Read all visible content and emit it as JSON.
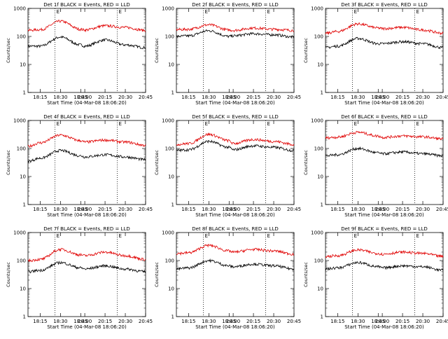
{
  "figure": {
    "xlabel": "Start Time (04-Mar-08 18:06:20)",
    "ylabel": "Counts/sec",
    "x_tick_labels": [
      "18:15",
      "18:30",
      "18:45",
      "20:00",
      "20:15",
      "20:30",
      "20:45"
    ],
    "y_tick_labels": [
      "1",
      "10",
      "100",
      "1000"
    ],
    "marker_labels": [
      "E",
      "E"
    ],
    "marker_times": [
      "18:26",
      "20:24"
    ],
    "colors": {
      "events": "#000000",
      "lld": "#e00000",
      "markers": "#000000"
    }
  },
  "chart_data": [
    {
      "type": "line",
      "title": "Det 1f BLACK = Events, RED = LLD",
      "yscale": "log",
      "ylim": [
        1,
        1000
      ],
      "x": [
        "18:06",
        "18:15",
        "18:30",
        "18:45",
        "20:00",
        "20:15",
        "20:30",
        "20:45"
      ],
      "series": [
        {
          "name": "Events",
          "values": [
            45,
            45,
            95,
            50,
            45,
            75,
            50,
            40
          ]
        },
        {
          "name": "LLD",
          "values": [
            165,
            175,
            350,
            180,
            170,
            240,
            210,
            165
          ]
        }
      ]
    },
    {
      "type": "line",
      "title": "Det 2f BLACK = Events, RED = LLD",
      "yscale": "log",
      "ylim": [
        1,
        1000
      ],
      "x": [
        "18:06",
        "18:15",
        "18:30",
        "18:45",
        "20:00",
        "20:15",
        "20:30",
        "20:45"
      ],
      "series": [
        {
          "name": "Events",
          "values": [
            100,
            105,
            160,
            100,
            105,
            125,
            115,
            95
          ]
        },
        {
          "name": "LLD",
          "values": [
            175,
            180,
            260,
            170,
            165,
            200,
            180,
            165
          ]
        }
      ]
    },
    {
      "type": "line",
      "title": "Det 3f BLACK = Events, RED = LLD",
      "yscale": "log",
      "ylim": [
        1,
        1000
      ],
      "x": [
        "18:06",
        "18:15",
        "18:30",
        "18:45",
        "20:00",
        "20:15",
        "20:30",
        "20:45"
      ],
      "series": [
        {
          "name": "Events",
          "values": [
            40,
            45,
            85,
            55,
            55,
            65,
            55,
            40
          ]
        },
        {
          "name": "LLD",
          "values": [
            130,
            150,
            280,
            200,
            190,
            210,
            170,
            130
          ]
        }
      ]
    },
    {
      "type": "line",
      "title": "Det 4f BLACK = Events, RED = LLD",
      "yscale": "log",
      "ylim": [
        1,
        1000
      ],
      "x": [
        "18:06",
        "18:15",
        "18:30",
        "18:45",
        "20:00",
        "20:15",
        "20:30",
        "20:45"
      ],
      "series": [
        {
          "name": "Events",
          "values": [
            35,
            45,
            85,
            55,
            50,
            60,
            50,
            40
          ]
        },
        {
          "name": "LLD",
          "values": [
            120,
            160,
            300,
            190,
            170,
            200,
            170,
            130
          ]
        }
      ]
    },
    {
      "type": "line",
      "title": "Det 5f BLACK = Events, RED = LLD",
      "yscale": "log",
      "ylim": [
        1,
        1000
      ],
      "x": [
        "18:06",
        "18:15",
        "18:30",
        "18:45",
        "20:00",
        "20:15",
        "20:30",
        "20:45"
      ],
      "series": [
        {
          "name": "Events",
          "values": [
            85,
            90,
            180,
            110,
            90,
            125,
            110,
            85
          ]
        },
        {
          "name": "LLD",
          "values": [
            140,
            150,
            320,
            190,
            150,
            210,
            180,
            140
          ]
        }
      ]
    },
    {
      "type": "line",
      "title": "Det 6f BLACK = Events, RED = LLD",
      "yscale": "log",
      "ylim": [
        1,
        1000
      ],
      "x": [
        "18:06",
        "18:15",
        "18:30",
        "18:45",
        "20:00",
        "20:15",
        "20:30",
        "20:45"
      ],
      "series": [
        {
          "name": "Events",
          "values": [
            55,
            60,
            100,
            70,
            65,
            75,
            65,
            55
          ]
        },
        {
          "name": "LLD",
          "values": [
            240,
            255,
            380,
            280,
            250,
            280,
            260,
            220
          ]
        }
      ]
    },
    {
      "type": "line",
      "title": "Det 7f BLACK = Events, RED = LLD",
      "yscale": "log",
      "ylim": [
        1,
        1000
      ],
      "x": [
        "18:06",
        "18:15",
        "18:30",
        "18:45",
        "20:00",
        "20:15",
        "20:30",
        "20:45"
      ],
      "series": [
        {
          "name": "Events",
          "values": [
            40,
            45,
            85,
            55,
            50,
            65,
            50,
            40
          ]
        },
        {
          "name": "LLD",
          "values": [
            100,
            110,
            250,
            160,
            150,
            200,
            150,
            110
          ]
        }
      ]
    },
    {
      "type": "line",
      "title": "Det 8f BLACK = Events, RED = LLD",
      "yscale": "log",
      "ylim": [
        1,
        1000
      ],
      "x": [
        "18:06",
        "18:15",
        "18:30",
        "18:45",
        "20:00",
        "20:15",
        "20:30",
        "20:45"
      ],
      "series": [
        {
          "name": "Events",
          "values": [
            50,
            55,
            100,
            65,
            60,
            75,
            65,
            50
          ]
        },
        {
          "name": "LLD",
          "values": [
            180,
            190,
            350,
            220,
            200,
            250,
            220,
            170
          ]
        }
      ]
    },
    {
      "type": "line",
      "title": "Det 9f BLACK = Events, RED = LLD",
      "yscale": "log",
      "ylim": [
        1,
        1000
      ],
      "x": [
        "18:06",
        "18:15",
        "18:30",
        "18:45",
        "20:00",
        "20:15",
        "20:30",
        "20:45"
      ],
      "series": [
        {
          "name": "Events",
          "values": [
            50,
            55,
            85,
            60,
            55,
            65,
            60,
            45
          ]
        },
        {
          "name": "LLD",
          "values": [
            140,
            150,
            240,
            180,
            170,
            200,
            180,
            140
          ]
        }
      ]
    }
  ]
}
